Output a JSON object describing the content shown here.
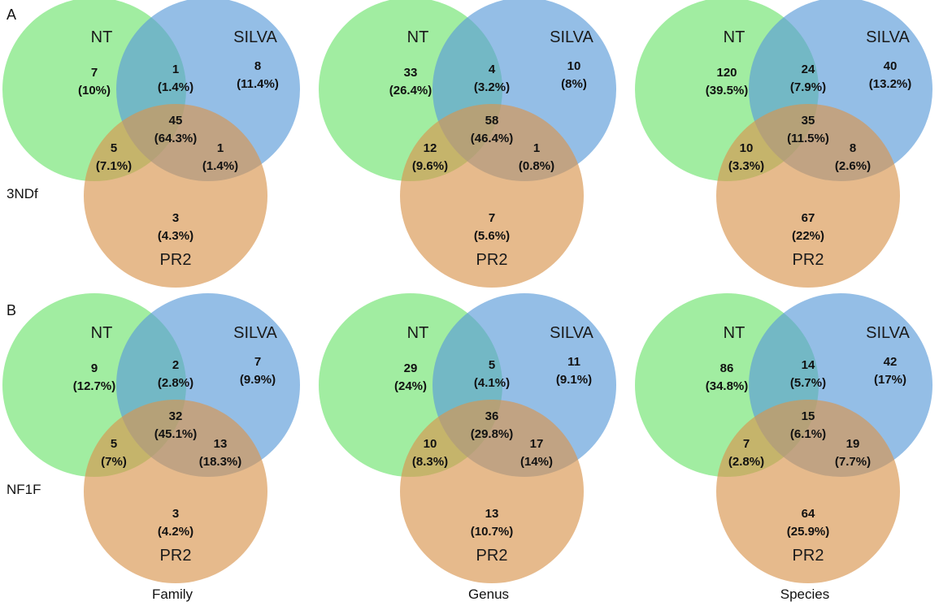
{
  "colors": {
    "NT": "#6ee36e",
    "SILVA": "#5b9bd9",
    "PR2": "#d9954f"
  },
  "rows": [
    {
      "letter": "A",
      "label": "3NDf",
      "panels": [
        {
          "sets": [
            "NT",
            "SILVA",
            "PR2"
          ],
          "regions": {
            "nt_only": {
              "count": "7",
              "pct": "(10%)"
            },
            "silva_only": {
              "count": "8",
              "pct": "(11.4%)"
            },
            "nt_silva": {
              "count": "1",
              "pct": "(1.4%)"
            },
            "all": {
              "count": "45",
              "pct": "(64.3%)"
            },
            "nt_pr2": {
              "count": "5",
              "pct": "(7.1%)"
            },
            "silva_pr2": {
              "count": "1",
              "pct": "(1.4%)"
            },
            "pr2_only": {
              "count": "3",
              "pct": "(4.3%)"
            }
          }
        },
        {
          "sets": [
            "NT",
            "SILVA",
            "PR2"
          ],
          "regions": {
            "nt_only": {
              "count": "33",
              "pct": "(26.4%)"
            },
            "silva_only": {
              "count": "10",
              "pct": "(8%)"
            },
            "nt_silva": {
              "count": "4",
              "pct": "(3.2%)"
            },
            "all": {
              "count": "58",
              "pct": "(46.4%)"
            },
            "nt_pr2": {
              "count": "12",
              "pct": "(9.6%)"
            },
            "silva_pr2": {
              "count": "1",
              "pct": "(0.8%)"
            },
            "pr2_only": {
              "count": "7",
              "pct": "(5.6%)"
            }
          }
        },
        {
          "sets": [
            "NT",
            "SILVA",
            "PR2"
          ],
          "regions": {
            "nt_only": {
              "count": "120",
              "pct": "(39.5%)"
            },
            "silva_only": {
              "count": "40",
              "pct": "(13.2%)"
            },
            "nt_silva": {
              "count": "24",
              "pct": "(7.9%)"
            },
            "all": {
              "count": "35",
              "pct": "(11.5%)"
            },
            "nt_pr2": {
              "count": "10",
              "pct": "(3.3%)"
            },
            "silva_pr2": {
              "count": "8",
              "pct": "(2.6%)"
            },
            "pr2_only": {
              "count": "67",
              "pct": "(22%)"
            }
          }
        }
      ]
    },
    {
      "letter": "B",
      "label": "NF1F",
      "panels": [
        {
          "sets": [
            "NT",
            "SILVA",
            "PR2"
          ],
          "regions": {
            "nt_only": {
              "count": "9",
              "pct": "(12.7%)"
            },
            "silva_only": {
              "count": "7",
              "pct": "(9.9%)"
            },
            "nt_silva": {
              "count": "2",
              "pct": "(2.8%)"
            },
            "all": {
              "count": "32",
              "pct": "(45.1%)"
            },
            "nt_pr2": {
              "count": "5",
              "pct": "(7%)"
            },
            "silva_pr2": {
              "count": "13",
              "pct": "(18.3%)"
            },
            "pr2_only": {
              "count": "3",
              "pct": "(4.2%)"
            }
          }
        },
        {
          "sets": [
            "NT",
            "SILVA",
            "PR2"
          ],
          "regions": {
            "nt_only": {
              "count": "29",
              "pct": "(24%)"
            },
            "silva_only": {
              "count": "11",
              "pct": "(9.1%)"
            },
            "nt_silva": {
              "count": "5",
              "pct": "(4.1%)"
            },
            "all": {
              "count": "36",
              "pct": "(29.8%)"
            },
            "nt_pr2": {
              "count": "10",
              "pct": "(8.3%)"
            },
            "silva_pr2": {
              "count": "17",
              "pct": "(14%)"
            },
            "pr2_only": {
              "count": "13",
              "pct": "(10.7%)"
            }
          }
        },
        {
          "sets": [
            "NT",
            "SILVA",
            "PR2"
          ],
          "regions": {
            "nt_only": {
              "count": "86",
              "pct": "(34.8%)"
            },
            "silva_only": {
              "count": "42",
              "pct": "(17%)"
            },
            "nt_silva": {
              "count": "14",
              "pct": "(5.7%)"
            },
            "all": {
              "count": "15",
              "pct": "(6.1%)"
            },
            "nt_pr2": {
              "count": "7",
              "pct": "(2.8%)"
            },
            "silva_pr2": {
              "count": "19",
              "pct": "(7.7%)"
            },
            "pr2_only": {
              "count": "64",
              "pct": "(25.9%)"
            }
          }
        }
      ]
    }
  ],
  "columns": [
    "Family",
    "Genus",
    "Species"
  ]
}
